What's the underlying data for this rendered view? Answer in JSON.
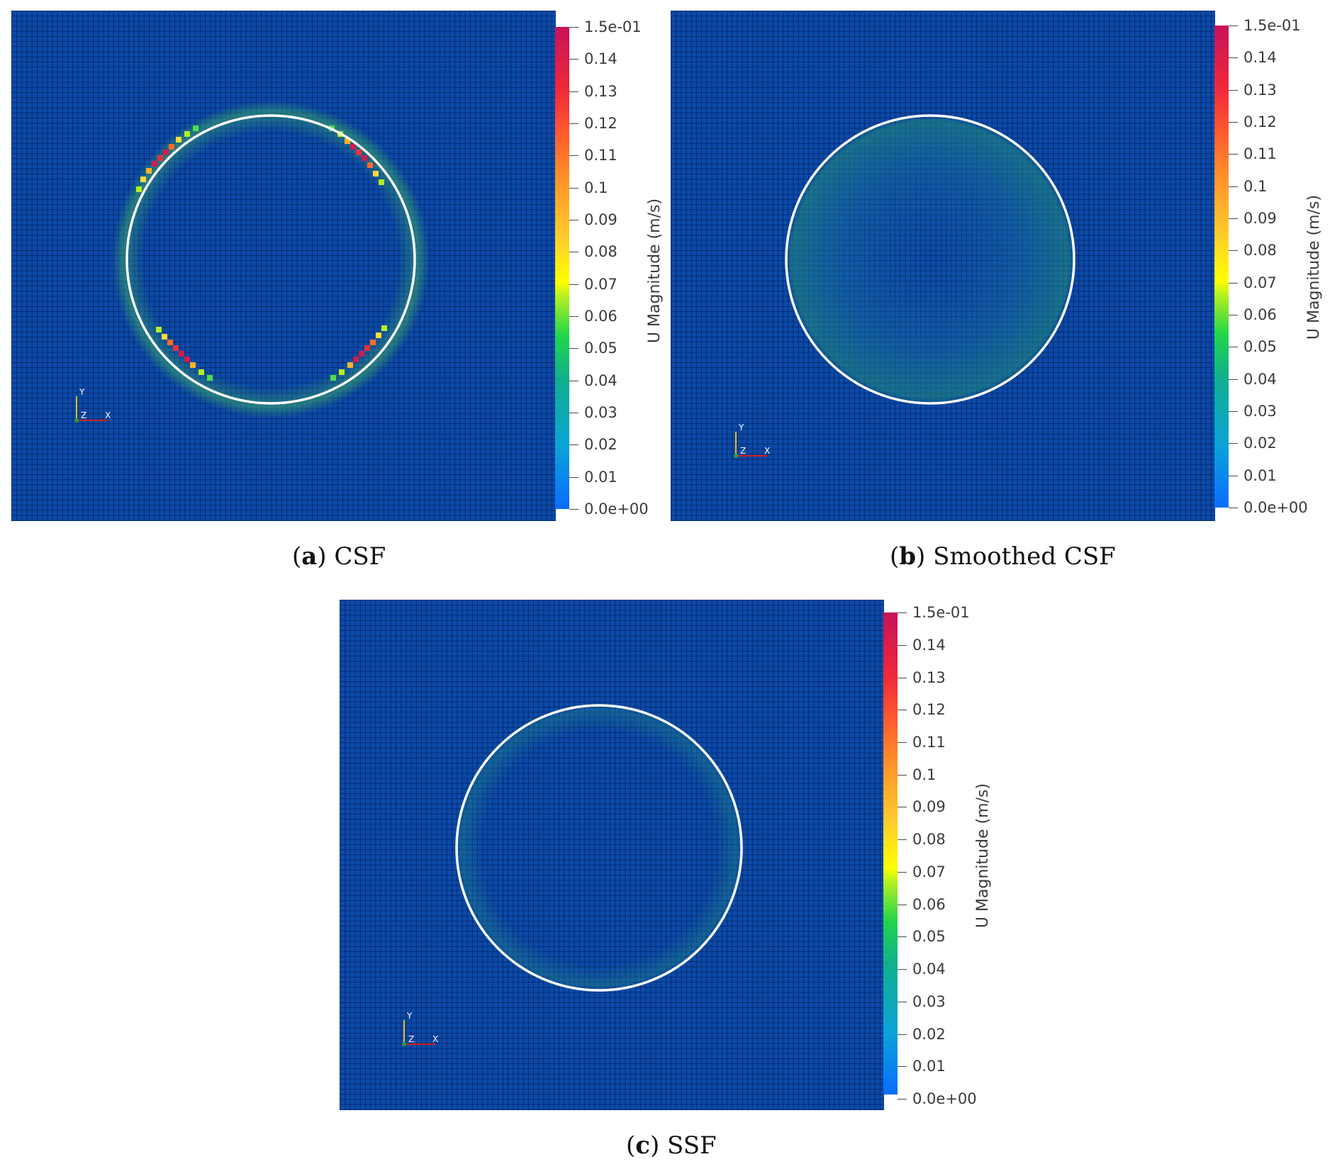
{
  "colorbar": {
    "title": "U Magnitude (m/s)",
    "range": [
      0,
      0.15
    ],
    "ticks": [
      "1.5e-01",
      "0.14",
      "0.13",
      "0.12",
      "0.11",
      "0.1",
      "0.09",
      "0.08",
      "0.07",
      "0.06",
      "0.05",
      "0.04",
      "0.03",
      "0.02",
      "0.01",
      "0.0e+00"
    ]
  },
  "axes_triad": {
    "x": "X",
    "y": "Y",
    "z": "Z"
  },
  "panels": [
    {
      "letter": "a",
      "title": "CSF"
    },
    {
      "letter": "b",
      "title": "Smoothed CSF"
    },
    {
      "letter": "c",
      "title": "SSF"
    }
  ]
}
